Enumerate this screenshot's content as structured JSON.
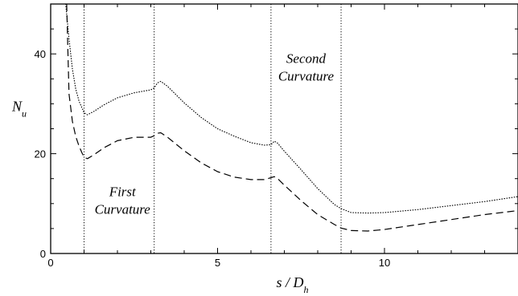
{
  "chart_data": {
    "type": "line",
    "title": "",
    "xlabel_main": "s / D",
    "xlabel_sub": "h",
    "ylabel_main": "N",
    "ylabel_sub": "u",
    "xlim": [
      0,
      14
    ],
    "ylim": [
      0,
      50
    ],
    "x_ticks": [
      0,
      5,
      10
    ],
    "y_ticks": [
      0,
      20,
      40
    ],
    "grid": false,
    "legend": "none",
    "vertical_lines": [
      1.0,
      3.1,
      6.6,
      8.7
    ],
    "annotations": [
      {
        "lines": [
          "First",
          "Curvature"
        ],
        "x": 2.15,
        "y": 11.5
      },
      {
        "lines": [
          "Second",
          "Curvature"
        ],
        "x": 7.65,
        "y": 38.2
      }
    ],
    "series": [
      {
        "style": "dotted",
        "x": [
          0.45,
          0.55,
          0.65,
          0.75,
          0.85,
          0.95,
          1.0,
          1.1,
          1.3,
          1.6,
          2.0,
          2.5,
          3.0,
          3.1,
          3.2,
          3.3,
          3.5,
          4.0,
          4.5,
          5.0,
          5.5,
          6.0,
          6.4,
          6.6,
          6.7,
          6.8,
          7.0,
          7.5,
          8.0,
          8.5,
          8.7,
          9.0,
          9.5,
          10.0,
          11.0,
          12.0,
          13.0,
          14.0
        ],
        "y": [
          50,
          43,
          37,
          33,
          30.5,
          29,
          28.2,
          27.8,
          28.5,
          29.8,
          31.2,
          32.2,
          32.8,
          33.2,
          34.2,
          34.5,
          33.5,
          30.2,
          27.3,
          25,
          23.5,
          22.2,
          21.7,
          21.8,
          22.5,
          22.1,
          20.5,
          16.8,
          13,
          9.8,
          9,
          8.2,
          8.1,
          8.2,
          8.8,
          9.6,
          10.4,
          11.4
        ]
      },
      {
        "style": "dashed",
        "x": [
          0.48,
          0.55,
          0.65,
          0.75,
          0.85,
          0.95,
          1.0,
          1.1,
          1.3,
          1.6,
          2.0,
          2.5,
          3.0,
          3.1,
          3.2,
          3.3,
          3.5,
          4.0,
          4.5,
          5.0,
          5.5,
          6.0,
          6.4,
          6.6,
          6.7,
          6.8,
          7.0,
          7.5,
          8.0,
          8.5,
          8.7,
          9.0,
          9.5,
          10.0,
          11.0,
          12.0,
          13.0,
          14.0
        ],
        "y": [
          50,
          32,
          26.5,
          23.5,
          21.5,
          20,
          19.3,
          19,
          19.8,
          21.2,
          22.6,
          23.3,
          23.3,
          23.6,
          24.1,
          24.2,
          23.3,
          20.6,
          18.2,
          16.4,
          15.3,
          14.8,
          14.8,
          15.2,
          15.4,
          15,
          13.7,
          10.6,
          7.8,
          5.8,
          5.1,
          4.6,
          4.5,
          4.8,
          5.8,
          6.8,
          7.8,
          8.6
        ]
      }
    ]
  }
}
